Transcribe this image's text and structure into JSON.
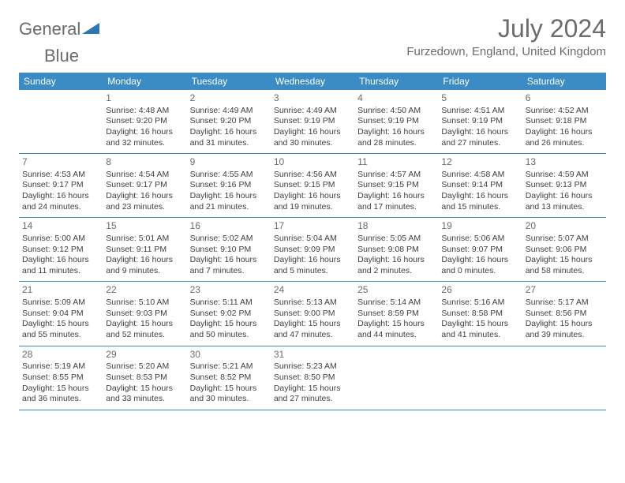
{
  "logo": {
    "general": "General",
    "blue": "Blue"
  },
  "title": "July 2024",
  "location": "Furzedown, England, United Kingdom",
  "colors": {
    "header_bg": "#3b8bc4",
    "header_fg": "#ffffff",
    "text": "#404040",
    "muted": "#6b6b6b",
    "border": "#3b8bc4",
    "logo_shape": "#2e75b6"
  },
  "weekdays": [
    "Sunday",
    "Monday",
    "Tuesday",
    "Wednesday",
    "Thursday",
    "Friday",
    "Saturday"
  ],
  "weeks": [
    [
      {},
      {
        "n": "1",
        "sr": "Sunrise: 4:48 AM",
        "ss": "Sunset: 9:20 PM",
        "d1": "Daylight: 16 hours",
        "d2": "and 32 minutes."
      },
      {
        "n": "2",
        "sr": "Sunrise: 4:49 AM",
        "ss": "Sunset: 9:20 PM",
        "d1": "Daylight: 16 hours",
        "d2": "and 31 minutes."
      },
      {
        "n": "3",
        "sr": "Sunrise: 4:49 AM",
        "ss": "Sunset: 9:19 PM",
        "d1": "Daylight: 16 hours",
        "d2": "and 30 minutes."
      },
      {
        "n": "4",
        "sr": "Sunrise: 4:50 AM",
        "ss": "Sunset: 9:19 PM",
        "d1": "Daylight: 16 hours",
        "d2": "and 28 minutes."
      },
      {
        "n": "5",
        "sr": "Sunrise: 4:51 AM",
        "ss": "Sunset: 9:19 PM",
        "d1": "Daylight: 16 hours",
        "d2": "and 27 minutes."
      },
      {
        "n": "6",
        "sr": "Sunrise: 4:52 AM",
        "ss": "Sunset: 9:18 PM",
        "d1": "Daylight: 16 hours",
        "d2": "and 26 minutes."
      }
    ],
    [
      {
        "n": "7",
        "sr": "Sunrise: 4:53 AM",
        "ss": "Sunset: 9:17 PM",
        "d1": "Daylight: 16 hours",
        "d2": "and 24 minutes."
      },
      {
        "n": "8",
        "sr": "Sunrise: 4:54 AM",
        "ss": "Sunset: 9:17 PM",
        "d1": "Daylight: 16 hours",
        "d2": "and 23 minutes."
      },
      {
        "n": "9",
        "sr": "Sunrise: 4:55 AM",
        "ss": "Sunset: 9:16 PM",
        "d1": "Daylight: 16 hours",
        "d2": "and 21 minutes."
      },
      {
        "n": "10",
        "sr": "Sunrise: 4:56 AM",
        "ss": "Sunset: 9:15 PM",
        "d1": "Daylight: 16 hours",
        "d2": "and 19 minutes."
      },
      {
        "n": "11",
        "sr": "Sunrise: 4:57 AM",
        "ss": "Sunset: 9:15 PM",
        "d1": "Daylight: 16 hours",
        "d2": "and 17 minutes."
      },
      {
        "n": "12",
        "sr": "Sunrise: 4:58 AM",
        "ss": "Sunset: 9:14 PM",
        "d1": "Daylight: 16 hours",
        "d2": "and 15 minutes."
      },
      {
        "n": "13",
        "sr": "Sunrise: 4:59 AM",
        "ss": "Sunset: 9:13 PM",
        "d1": "Daylight: 16 hours",
        "d2": "and 13 minutes."
      }
    ],
    [
      {
        "n": "14",
        "sr": "Sunrise: 5:00 AM",
        "ss": "Sunset: 9:12 PM",
        "d1": "Daylight: 16 hours",
        "d2": "and 11 minutes."
      },
      {
        "n": "15",
        "sr": "Sunrise: 5:01 AM",
        "ss": "Sunset: 9:11 PM",
        "d1": "Daylight: 16 hours",
        "d2": "and 9 minutes."
      },
      {
        "n": "16",
        "sr": "Sunrise: 5:02 AM",
        "ss": "Sunset: 9:10 PM",
        "d1": "Daylight: 16 hours",
        "d2": "and 7 minutes."
      },
      {
        "n": "17",
        "sr": "Sunrise: 5:04 AM",
        "ss": "Sunset: 9:09 PM",
        "d1": "Daylight: 16 hours",
        "d2": "and 5 minutes."
      },
      {
        "n": "18",
        "sr": "Sunrise: 5:05 AM",
        "ss": "Sunset: 9:08 PM",
        "d1": "Daylight: 16 hours",
        "d2": "and 2 minutes."
      },
      {
        "n": "19",
        "sr": "Sunrise: 5:06 AM",
        "ss": "Sunset: 9:07 PM",
        "d1": "Daylight: 16 hours",
        "d2": "and 0 minutes."
      },
      {
        "n": "20",
        "sr": "Sunrise: 5:07 AM",
        "ss": "Sunset: 9:06 PM",
        "d1": "Daylight: 15 hours",
        "d2": "and 58 minutes."
      }
    ],
    [
      {
        "n": "21",
        "sr": "Sunrise: 5:09 AM",
        "ss": "Sunset: 9:04 PM",
        "d1": "Daylight: 15 hours",
        "d2": "and 55 minutes."
      },
      {
        "n": "22",
        "sr": "Sunrise: 5:10 AM",
        "ss": "Sunset: 9:03 PM",
        "d1": "Daylight: 15 hours",
        "d2": "and 52 minutes."
      },
      {
        "n": "23",
        "sr": "Sunrise: 5:11 AM",
        "ss": "Sunset: 9:02 PM",
        "d1": "Daylight: 15 hours",
        "d2": "and 50 minutes."
      },
      {
        "n": "24",
        "sr": "Sunrise: 5:13 AM",
        "ss": "Sunset: 9:00 PM",
        "d1": "Daylight: 15 hours",
        "d2": "and 47 minutes."
      },
      {
        "n": "25",
        "sr": "Sunrise: 5:14 AM",
        "ss": "Sunset: 8:59 PM",
        "d1": "Daylight: 15 hours",
        "d2": "and 44 minutes."
      },
      {
        "n": "26",
        "sr": "Sunrise: 5:16 AM",
        "ss": "Sunset: 8:58 PM",
        "d1": "Daylight: 15 hours",
        "d2": "and 41 minutes."
      },
      {
        "n": "27",
        "sr": "Sunrise: 5:17 AM",
        "ss": "Sunset: 8:56 PM",
        "d1": "Daylight: 15 hours",
        "d2": "and 39 minutes."
      }
    ],
    [
      {
        "n": "28",
        "sr": "Sunrise: 5:19 AM",
        "ss": "Sunset: 8:55 PM",
        "d1": "Daylight: 15 hours",
        "d2": "and 36 minutes."
      },
      {
        "n": "29",
        "sr": "Sunrise: 5:20 AM",
        "ss": "Sunset: 8:53 PM",
        "d1": "Daylight: 15 hours",
        "d2": "and 33 minutes."
      },
      {
        "n": "30",
        "sr": "Sunrise: 5:21 AM",
        "ss": "Sunset: 8:52 PM",
        "d1": "Daylight: 15 hours",
        "d2": "and 30 minutes."
      },
      {
        "n": "31",
        "sr": "Sunrise: 5:23 AM",
        "ss": "Sunset: 8:50 PM",
        "d1": "Daylight: 15 hours",
        "d2": "and 27 minutes."
      },
      {},
      {},
      {}
    ]
  ]
}
